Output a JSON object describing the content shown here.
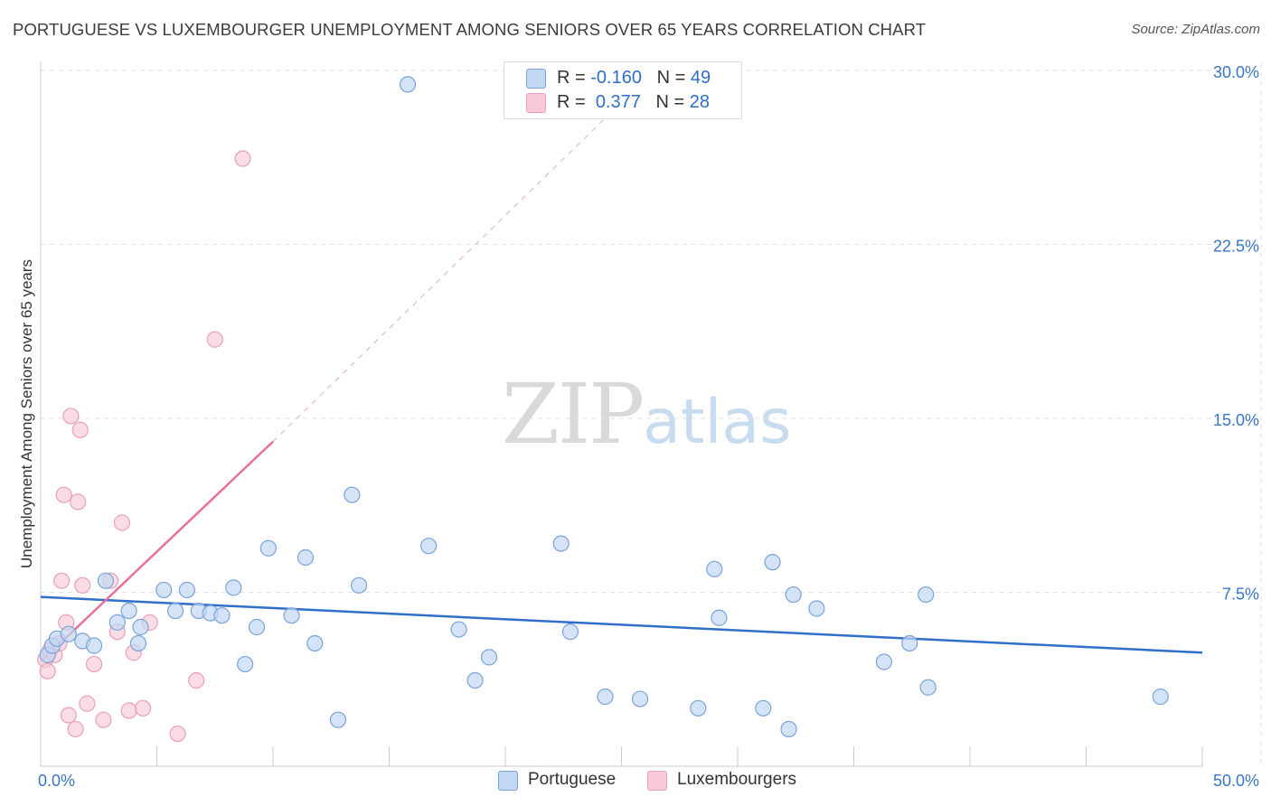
{
  "title": "PORTUGUESE VS LUXEMBOURGER UNEMPLOYMENT AMONG SENIORS OVER 65 YEARS CORRELATION CHART",
  "source": "Source: ZipAtlas.com",
  "watermark": {
    "zip": "ZIP",
    "atlas": "atlas"
  },
  "colors": {
    "blue_fill": "#c2d7f2",
    "blue_stroke": "#7aa3dc",
    "blue_line": "#2f6fc8",
    "pink_fill": "#f8c9d7",
    "pink_stroke": "#e9a0b8",
    "pink_line": "#e8709a",
    "grid": "#e2e2e2",
    "axis": "#cccccc",
    "tick_text": "#3a76c4"
  },
  "legend": {
    "r_label": "R =",
    "n_label": "N =",
    "series": [
      {
        "r": "-0.160",
        "n": "49"
      },
      {
        "r": "0.377",
        "n": "28"
      }
    ]
  },
  "bottom_legend": [
    "Portuguese",
    "Luxembourgers"
  ],
  "chart_data": {
    "type": "scatter",
    "title": "PORTUGUESE VS LUXEMBOURGER UNEMPLOYMENT AMONG SENIORS OVER 65 YEARS CORRELATION CHART",
    "xlabel": "",
    "ylabel": "Unemployment Among Seniors over 65 years",
    "xlim": [
      0,
      50
    ],
    "ylim": [
      0,
      30
    ],
    "x_tick_labels": [
      {
        "value": 0,
        "label": "0.0%"
      },
      {
        "value": 50,
        "label": "50.0%"
      }
    ],
    "y_tick_labels": [
      {
        "value": 7.5,
        "label": "7.5%"
      },
      {
        "value": 15,
        "label": "15.0%"
      },
      {
        "value": 22.5,
        "label": "22.5%"
      },
      {
        "value": 30,
        "label": "30.0%"
      }
    ],
    "grid": true,
    "series": [
      {
        "name": "Portuguese",
        "color": "blue",
        "points": [
          [
            0.3,
            4.8
          ],
          [
            0.5,
            5.2
          ],
          [
            0.7,
            5.5
          ],
          [
            1.2,
            5.7
          ],
          [
            1.8,
            5.4
          ],
          [
            2.3,
            5.2
          ],
          [
            2.8,
            8.0
          ],
          [
            3.3,
            6.2
          ],
          [
            3.8,
            6.7
          ],
          [
            4.3,
            6.0
          ],
          [
            4.2,
            5.3
          ],
          [
            5.3,
            7.6
          ],
          [
            5.8,
            6.7
          ],
          [
            6.3,
            7.6
          ],
          [
            6.8,
            6.7
          ],
          [
            7.3,
            6.6
          ],
          [
            7.8,
            6.5
          ],
          [
            8.3,
            7.7
          ],
          [
            8.8,
            4.4
          ],
          [
            9.3,
            6.0
          ],
          [
            9.8,
            9.4
          ],
          [
            11.4,
            9.0
          ],
          [
            10.8,
            6.5
          ],
          [
            11.8,
            5.3
          ],
          [
            12.8,
            2.0
          ],
          [
            13.4,
            11.7
          ],
          [
            13.7,
            7.8
          ],
          [
            15.8,
            29.4
          ],
          [
            16.7,
            9.5
          ],
          [
            18.0,
            5.9
          ],
          [
            18.7,
            3.7
          ],
          [
            19.3,
            4.7
          ],
          [
            22.4,
            9.6
          ],
          [
            22.8,
            5.8
          ],
          [
            24.3,
            3.0
          ],
          [
            25.8,
            2.9
          ],
          [
            28.3,
            2.5
          ],
          [
            29.0,
            8.5
          ],
          [
            29.2,
            6.4
          ],
          [
            31.1,
            2.5
          ],
          [
            31.5,
            8.8
          ],
          [
            32.2,
            1.6
          ],
          [
            32.4,
            7.4
          ],
          [
            33.4,
            6.8
          ],
          [
            36.3,
            4.5
          ],
          [
            37.4,
            5.3
          ],
          [
            38.1,
            7.4
          ],
          [
            38.2,
            3.4
          ],
          [
            48.2,
            3.0
          ]
        ],
        "trend": {
          "x": [
            0,
            50
          ],
          "y": [
            7.3,
            4.9
          ],
          "r": -0.16
        }
      },
      {
        "name": "Luxembourgers",
        "color": "pink",
        "points": [
          [
            0.2,
            4.6
          ],
          [
            0.3,
            4.1
          ],
          [
            0.4,
            5.0
          ],
          [
            0.6,
            4.8
          ],
          [
            0.8,
            5.3
          ],
          [
            0.9,
            8.0
          ],
          [
            1.0,
            11.7
          ],
          [
            1.1,
            6.2
          ],
          [
            1.2,
            2.2
          ],
          [
            1.3,
            15.1
          ],
          [
            1.5,
            1.6
          ],
          [
            1.6,
            11.4
          ],
          [
            1.7,
            14.5
          ],
          [
            1.8,
            7.8
          ],
          [
            2.0,
            2.7
          ],
          [
            2.3,
            4.4
          ],
          [
            2.7,
            2.0
          ],
          [
            3.0,
            8.0
          ],
          [
            3.3,
            5.8
          ],
          [
            3.5,
            10.5
          ],
          [
            3.8,
            2.4
          ],
          [
            4.0,
            4.9
          ],
          [
            4.4,
            2.5
          ],
          [
            4.7,
            6.2
          ],
          [
            5.9,
            1.4
          ],
          [
            6.7,
            3.7
          ],
          [
            7.5,
            18.4
          ],
          [
            8.7,
            26.2
          ]
        ],
        "trend": {
          "x": [
            0.1,
            10.0
          ],
          "y": [
            4.6,
            14.0
          ],
          "dashed_to": {
            "x": 26.0,
            "y": 29.6
          },
          "r": 0.377
        }
      }
    ]
  }
}
